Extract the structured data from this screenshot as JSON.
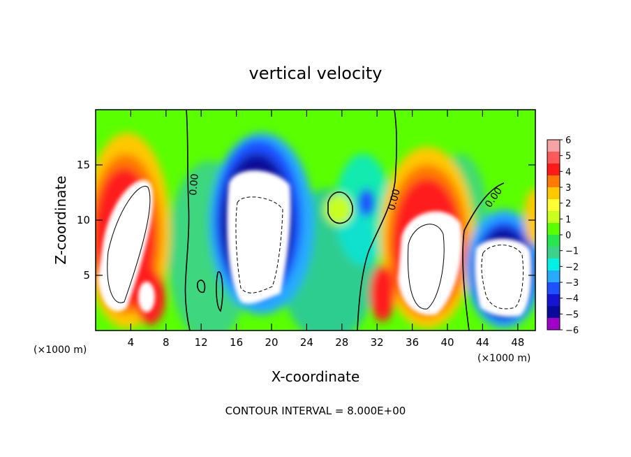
{
  "chart_data": {
    "type": "heatmap",
    "title": "vertical velocity",
    "xlabel": "X-coordinate",
    "ylabel": "Z-coordinate",
    "x_unit": "(×1000 m)",
    "x_unit_right": "(×1000 m)",
    "footer": "CONTOUR INTERVAL = 8.000E+00",
    "xlim": [
      0,
      50
    ],
    "ylim": [
      0,
      20
    ],
    "x_ticks": [
      4,
      8,
      12,
      16,
      20,
      24,
      28,
      32,
      36,
      40,
      44,
      48
    ],
    "y_ticks": [
      5,
      10,
      15
    ],
    "colorbar": {
      "range": [
        -6,
        6
      ],
      "ticks": [
        6,
        5,
        4,
        3,
        2,
        1,
        0,
        -1,
        -2,
        -3,
        -4,
        -5,
        -6
      ],
      "colors": [
        "#f6a3a3",
        "#ff5a5a",
        "#ff1a1a",
        "#ff7a00",
        "#ffc800",
        "#ffff33",
        "#c8ff1e",
        "#5aff00",
        "#28e650",
        "#3cd28c",
        "#00f0e6",
        "#28aaff",
        "#1e50ff",
        "#1414d2",
        "#0a0a9a",
        "#a000c8"
      ]
    },
    "contour_labels": [
      "0.00",
      "0.00",
      "0.00"
    ],
    "cells": [
      {
        "x": 3,
        "z": 7,
        "w": 6.5,
        "sign": 1
      },
      {
        "x": 6.5,
        "z": 2.5,
        "w": 5,
        "sign": 1
      },
      {
        "x": 18,
        "z": 7.5,
        "w": -7,
        "sign": -1
      },
      {
        "x": 27.5,
        "z": 11,
        "w": 1.8,
        "sign": 1
      },
      {
        "x": 32.5,
        "z": 3,
        "w": 4,
        "sign": 1
      },
      {
        "x": 37.5,
        "z": 6,
        "w": 7,
        "sign": 1
      },
      {
        "x": 46,
        "z": 4.5,
        "w": -6,
        "sign": -1
      }
    ]
  }
}
